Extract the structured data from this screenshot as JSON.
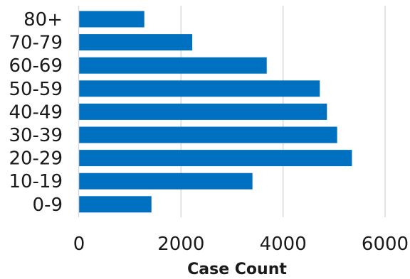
{
  "chart_data": {
    "type": "bar",
    "orientation": "horizontal",
    "categories": [
      "80+",
      "70-79",
      "60-69",
      "50-59",
      "40-49",
      "30-39",
      "20-29",
      "10-19",
      "0-9"
    ],
    "values": [
      1280,
      2220,
      3680,
      4720,
      4860,
      5060,
      5350,
      3400,
      1420
    ],
    "title": "",
    "xlabel": "Case Count",
    "ylabel": "",
    "xlim": [
      0,
      6000
    ],
    "x_ticks": [
      "0",
      "2000",
      "4000",
      "6000"
    ],
    "x_tick_values": [
      0,
      2000,
      4000,
      6000
    ],
    "grid": "vertical",
    "legend": "none",
    "colors": {
      "bar": "#0070c0",
      "grid": "#d9d9d9",
      "axis": "#d9d9d9",
      "text": "#1a1a1a"
    }
  }
}
